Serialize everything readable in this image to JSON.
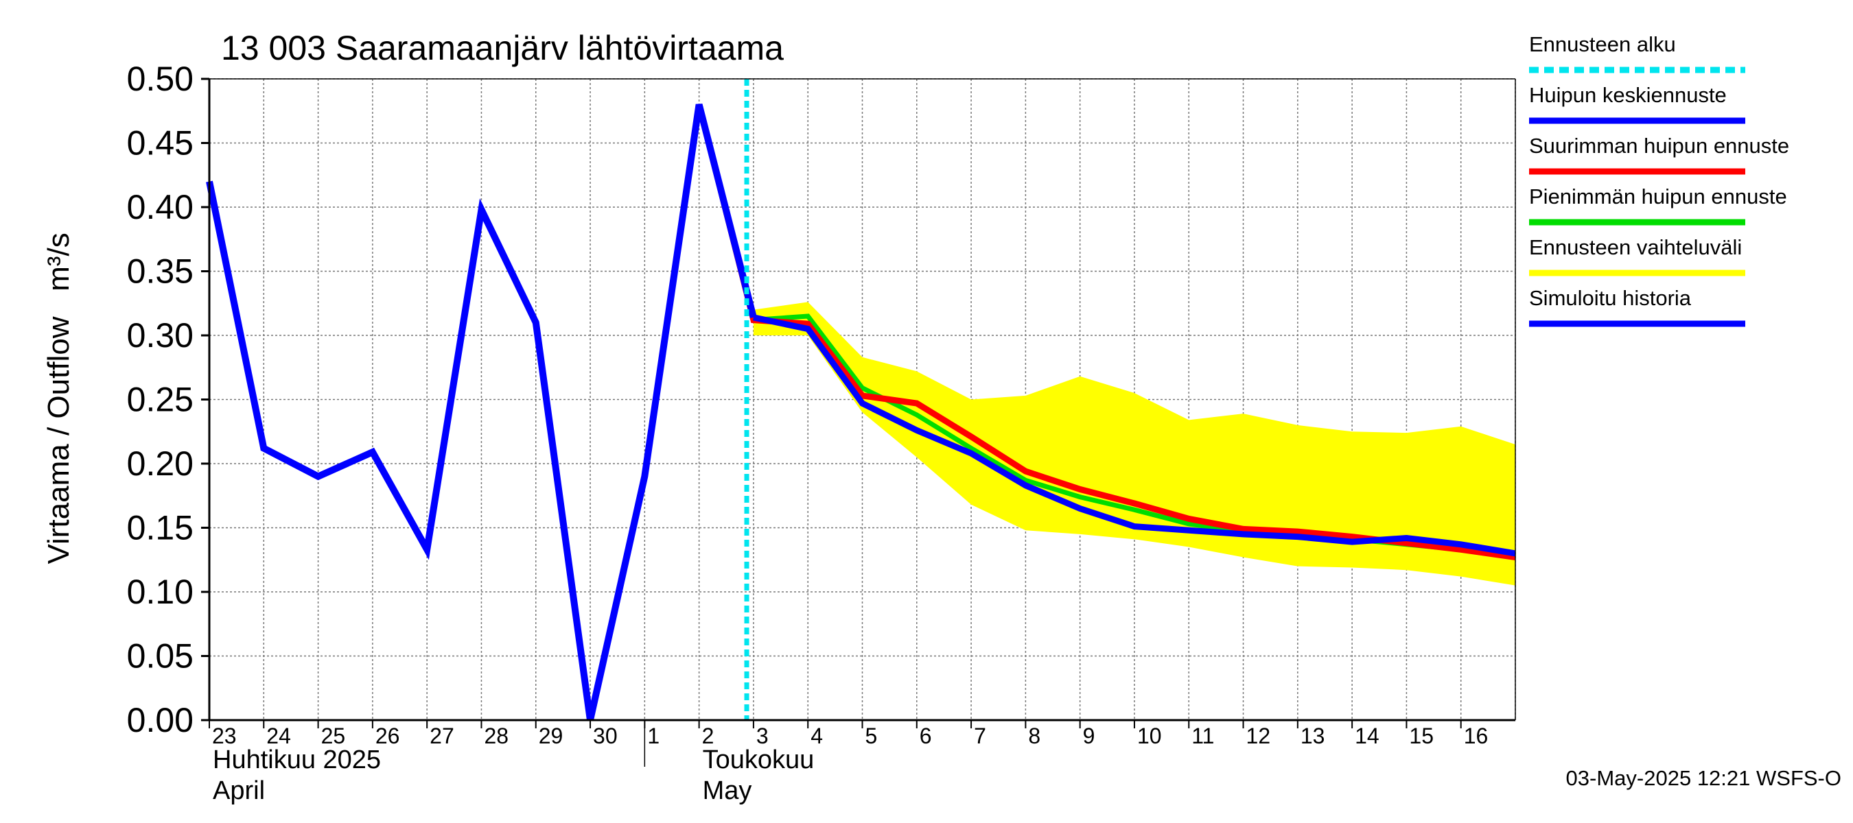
{
  "chart_data": {
    "type": "line",
    "title": "13 003 Saaramaanjärv lähtövirtaama",
    "ylabel": "Virtaama / Outflow",
    "yunit": "m³/s",
    "ylim": [
      0,
      0.5
    ],
    "yticks": [
      "0.00",
      "0.05",
      "0.10",
      "0.15",
      "0.20",
      "0.25",
      "0.30",
      "0.35",
      "0.40",
      "0.45",
      "0.50"
    ],
    "ytick_values": [
      0,
      0.05,
      0.1,
      0.15,
      0.2,
      0.25,
      0.3,
      0.35,
      0.4,
      0.45,
      0.5
    ],
    "xlim": [
      "2025-04-23",
      "2025-05-17"
    ],
    "xticks": [
      "23",
      "24",
      "25",
      "26",
      "27",
      "28",
      "29",
      "30",
      "1",
      "2",
      "3",
      "4",
      "5",
      "6",
      "7",
      "8",
      "9",
      "10",
      "11",
      "12",
      "13",
      "14",
      "15",
      "16"
    ],
    "month_labels": [
      {
        "fi": "Huhtikuu  2025",
        "en": "April",
        "date": "2025-04-23"
      },
      {
        "fi": "Toukokuu",
        "en": "May",
        "date": "2025-05-02"
      }
    ],
    "month_boundary": "2025-05-01",
    "forecast_start": "2025-05-02 21:00",
    "grid": true,
    "legend_position": "right",
    "timestamp": "03-May-2025 12:21 WSFS-O",
    "band": {
      "name": "Ennusteen vaihteluväli",
      "color": "#ffff00",
      "x": [
        "2025-05-03",
        "2025-05-04",
        "2025-05-05",
        "2025-05-06",
        "2025-05-07",
        "2025-05-08",
        "2025-05-09",
        "2025-05-10",
        "2025-05-11",
        "2025-05-12",
        "2025-05-13",
        "2025-05-14",
        "2025-05-15",
        "2025-05-16",
        "2025-05-17"
      ],
      "upper": [
        0.32,
        0.326,
        0.283,
        0.272,
        0.25,
        0.253,
        0.268,
        0.255,
        0.234,
        0.239,
        0.23,
        0.225,
        0.224,
        0.229,
        0.215
      ],
      "lower": [
        0.3,
        0.3,
        0.24,
        0.205,
        0.168,
        0.148,
        0.145,
        0.141,
        0.135,
        0.127,
        0.12,
        0.119,
        0.117,
        0.112,
        0.105
      ]
    },
    "series": [
      {
        "name": "Pienimmän huipun ennuste",
        "color": "#00dd00",
        "x": [
          "2025-05-02",
          "2025-05-03",
          "2025-05-04",
          "2025-05-05",
          "2025-05-06",
          "2025-05-07",
          "2025-05-08",
          "2025-05-09",
          "2025-05-10",
          "2025-05-11",
          "2025-05-12",
          "2025-05-13",
          "2025-05-14",
          "2025-05-15",
          "2025-05-16",
          "2025-05-17"
        ],
        "values": [
          0.48,
          0.312,
          0.315,
          0.259,
          0.238,
          0.212,
          0.187,
          0.174,
          0.164,
          0.153,
          0.147,
          0.143,
          0.141,
          0.137,
          0.133,
          0.128
        ]
      },
      {
        "name": "Suurimman huipun ennuste",
        "color": "#ff0000",
        "x": [
          "2025-05-02",
          "2025-05-03",
          "2025-05-04",
          "2025-05-05",
          "2025-05-06",
          "2025-05-07",
          "2025-05-08",
          "2025-05-09",
          "2025-05-10",
          "2025-05-11",
          "2025-05-12",
          "2025-05-13",
          "2025-05-14",
          "2025-05-15",
          "2025-05-16",
          "2025-05-17"
        ],
        "values": [
          0.48,
          0.312,
          0.309,
          0.253,
          0.247,
          0.221,
          0.194,
          0.18,
          0.169,
          0.157,
          0.149,
          0.147,
          0.143,
          0.138,
          0.133,
          0.127
        ]
      },
      {
        "name": "Huipun keskiennuste",
        "color": "#0000ff",
        "x": [
          "2025-05-03",
          "2025-05-04",
          "2025-05-05",
          "2025-05-06",
          "2025-05-07",
          "2025-05-08",
          "2025-05-09",
          "2025-05-10",
          "2025-05-11",
          "2025-05-12",
          "2025-05-13",
          "2025-05-14",
          "2025-05-15",
          "2025-05-16",
          "2025-05-17"
        ],
        "values": [
          0.314,
          0.305,
          0.247,
          0.226,
          0.208,
          0.183,
          0.165,
          0.151,
          0.148,
          0.145,
          0.143,
          0.139,
          0.142,
          0.137,
          0.13
        ]
      },
      {
        "name": "Simuloitu historia",
        "color": "#0000ff",
        "x": [
          "2025-04-23",
          "2025-04-24",
          "2025-04-25",
          "2025-04-26",
          "2025-04-27",
          "2025-04-28",
          "2025-04-29",
          "2025-04-30",
          "2025-05-01",
          "2025-05-02",
          "2025-05-03"
        ],
        "values": [
          0.42,
          0.212,
          0.19,
          0.209,
          0.133,
          0.398,
          0.31,
          0.0,
          0.19,
          0.48,
          0.314
        ]
      }
    ],
    "legend": [
      {
        "label": "Ennusteen alku",
        "color": "#00e5ee",
        "style": "dashed"
      },
      {
        "label": "Huipun keskiennuste",
        "color": "#0000ff",
        "style": "solid"
      },
      {
        "label": "Suurimman huipun ennuste",
        "color": "#ff0000",
        "style": "solid"
      },
      {
        "label": "Pienimmän huipun ennuste",
        "color": "#00dd00",
        "style": "solid"
      },
      {
        "label": "Ennusteen vaihteluväli",
        "color": "#ffff00",
        "style": "solid"
      },
      {
        "label": "Simuloitu historia",
        "color": "#0000ff",
        "style": "solid"
      }
    ]
  }
}
